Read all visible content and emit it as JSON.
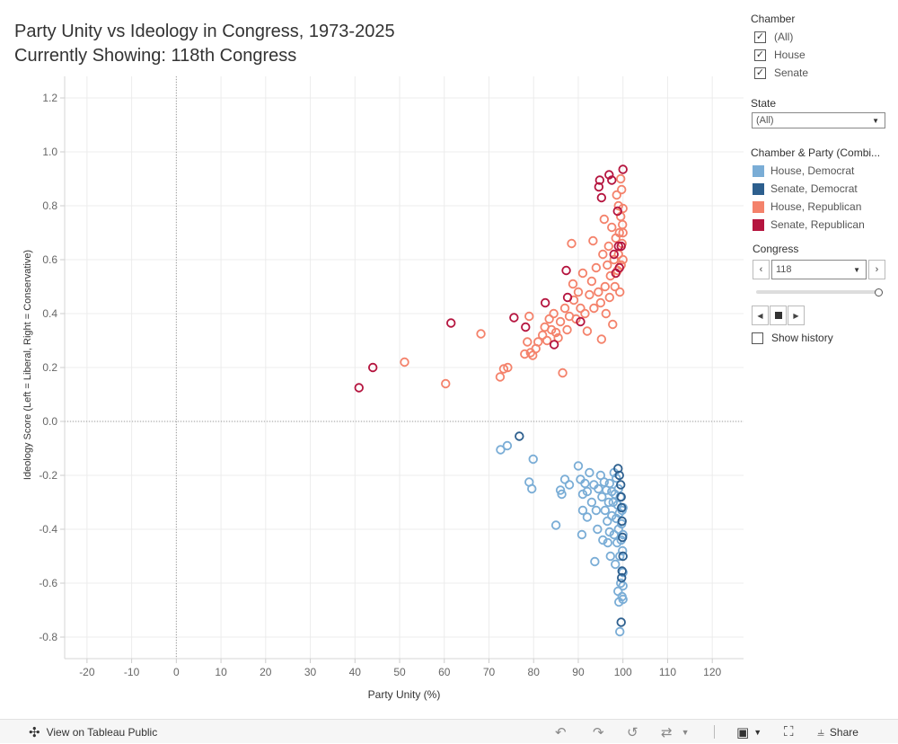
{
  "title": {
    "line1": "Party Unity vs Ideology in Congress, 1973-2025",
    "line2": "Currently Showing: 118th Congress"
  },
  "chart_data": {
    "type": "scatter",
    "xlabel": "Party Unity (%)",
    "ylabel": "Ideology Score (Left = Liberal, Right = Conservative)",
    "xlim": [
      -25,
      127
    ],
    "ylim": [
      -0.88,
      1.28
    ],
    "xticks": [
      -20,
      -10,
      0,
      10,
      20,
      30,
      40,
      50,
      60,
      70,
      80,
      90,
      100,
      110,
      120
    ],
    "yticks": [
      -0.8,
      -0.6,
      -0.4,
      -0.2,
      0.0,
      0.2,
      0.4,
      0.6,
      0.8,
      1.0,
      1.2
    ],
    "grid": true,
    "reference_lines": {
      "x": 0,
      "y": 0
    },
    "marker": "hollow-circle",
    "series": [
      {
        "name": "House, Democrat",
        "color": "#7aadd6",
        "points": [
          [
            72.6,
            -0.105
          ],
          [
            74.1,
            -0.09
          ],
          [
            79.0,
            -0.225
          ],
          [
            79.6,
            -0.25
          ],
          [
            79.9,
            -0.14
          ],
          [
            85.0,
            -0.385
          ],
          [
            86.0,
            -0.255
          ],
          [
            86.3,
            -0.27
          ],
          [
            87.0,
            -0.215
          ],
          [
            88.0,
            -0.235
          ],
          [
            90.0,
            -0.165
          ],
          [
            90.5,
            -0.215
          ],
          [
            90.8,
            -0.42
          ],
          [
            91.0,
            -0.27
          ],
          [
            91.0,
            -0.33
          ],
          [
            91.5,
            -0.23
          ],
          [
            92.0,
            -0.26
          ],
          [
            92.0,
            -0.355
          ],
          [
            92.5,
            -0.19
          ],
          [
            93.0,
            -0.3
          ],
          [
            93.5,
            -0.235
          ],
          [
            93.7,
            -0.52
          ],
          [
            94.0,
            -0.33
          ],
          [
            94.3,
            -0.4
          ],
          [
            94.5,
            -0.25
          ],
          [
            95.0,
            -0.2
          ],
          [
            95.3,
            -0.28
          ],
          [
            95.5,
            -0.44
          ],
          [
            95.8,
            -0.225
          ],
          [
            96.0,
            -0.33
          ],
          [
            96.3,
            -0.255
          ],
          [
            96.5,
            -0.37
          ],
          [
            96.6,
            -0.45
          ],
          [
            96.8,
            -0.3
          ],
          [
            97.0,
            -0.23
          ],
          [
            97.0,
            -0.41
          ],
          [
            97.2,
            -0.5
          ],
          [
            97.5,
            -0.26
          ],
          [
            97.5,
            -0.35
          ],
          [
            97.8,
            -0.3
          ],
          [
            98.0,
            -0.19
          ],
          [
            98.0,
            -0.42
          ],
          [
            98.2,
            -0.27
          ],
          [
            98.3,
            -0.53
          ],
          [
            98.5,
            -0.36
          ],
          [
            98.5,
            -0.21
          ],
          [
            98.7,
            -0.45
          ],
          [
            98.8,
            -0.31
          ],
          [
            98.9,
            -0.63
          ],
          [
            99.0,
            -0.25
          ],
          [
            99.0,
            -0.4
          ],
          [
            99.1,
            -0.67
          ],
          [
            99.2,
            -0.34
          ],
          [
            99.3,
            -0.5
          ],
          [
            99.3,
            -0.78
          ],
          [
            99.4,
            -0.28
          ],
          [
            99.5,
            -0.6
          ],
          [
            99.6,
            -0.44
          ],
          [
            99.7,
            -0.38
          ],
          [
            99.8,
            -0.65
          ],
          [
            99.8,
            -0.33
          ],
          [
            99.9,
            -0.48
          ],
          [
            100.0,
            -0.32
          ],
          [
            100.0,
            -0.42
          ],
          [
            100.0,
            -0.56
          ],
          [
            100.0,
            -0.61
          ],
          [
            100.0,
            -0.66
          ]
        ]
      },
      {
        "name": "Senate, Democrat",
        "color": "#2d5f8e",
        "points": [
          [
            76.8,
            -0.055
          ],
          [
            98.9,
            -0.175
          ],
          [
            99.2,
            -0.2
          ],
          [
            99.5,
            -0.235
          ],
          [
            99.6,
            -0.28
          ],
          [
            99.7,
            -0.32
          ],
          [
            99.8,
            -0.37
          ],
          [
            99.9,
            -0.43
          ],
          [
            100.0,
            -0.5
          ],
          [
            99.8,
            -0.555
          ],
          [
            99.7,
            -0.58
          ],
          [
            99.6,
            -0.745
          ]
        ]
      },
      {
        "name": "House, Republican",
        "color": "#f4826b",
        "points": [
          [
            51.1,
            0.22
          ],
          [
            60.3,
            0.14
          ],
          [
            68.2,
            0.325
          ],
          [
            72.5,
            0.165
          ],
          [
            73.3,
            0.195
          ],
          [
            74.2,
            0.2
          ],
          [
            78.0,
            0.25
          ],
          [
            78.6,
            0.295
          ],
          [
            79.0,
            0.39
          ],
          [
            79.3,
            0.255
          ],
          [
            79.8,
            0.245
          ],
          [
            80.5,
            0.27
          ],
          [
            81.0,
            0.295
          ],
          [
            82.0,
            0.32
          ],
          [
            82.5,
            0.35
          ],
          [
            83.0,
            0.3
          ],
          [
            83.5,
            0.38
          ],
          [
            84.0,
            0.34
          ],
          [
            84.5,
            0.4
          ],
          [
            85.0,
            0.33
          ],
          [
            85.5,
            0.31
          ],
          [
            86.0,
            0.37
          ],
          [
            86.5,
            0.18
          ],
          [
            87.0,
            0.42
          ],
          [
            87.5,
            0.34
          ],
          [
            88.0,
            0.39
          ],
          [
            88.5,
            0.66
          ],
          [
            88.8,
            0.51
          ],
          [
            89.0,
            0.45
          ],
          [
            89.5,
            0.38
          ],
          [
            90.0,
            0.48
          ],
          [
            90.5,
            0.42
          ],
          [
            91.0,
            0.55
          ],
          [
            91.5,
            0.4
          ],
          [
            92.0,
            0.335
          ],
          [
            92.5,
            0.47
          ],
          [
            93.0,
            0.52
          ],
          [
            93.3,
            0.67
          ],
          [
            93.5,
            0.42
          ],
          [
            94.0,
            0.57
          ],
          [
            94.5,
            0.48
          ],
          [
            95.0,
            0.44
          ],
          [
            95.2,
            0.305
          ],
          [
            95.5,
            0.62
          ],
          [
            95.8,
            0.75
          ],
          [
            96.0,
            0.5
          ],
          [
            96.2,
            0.4
          ],
          [
            96.5,
            0.58
          ],
          [
            96.8,
            0.65
          ],
          [
            97.0,
            0.46
          ],
          [
            97.2,
            0.54
          ],
          [
            97.5,
            0.72
          ],
          [
            97.7,
            0.36
          ],
          [
            98.0,
            0.6
          ],
          [
            98.2,
            0.5
          ],
          [
            98.4,
            0.68
          ],
          [
            98.6,
            0.84
          ],
          [
            98.8,
            0.56
          ],
          [
            99.0,
            0.62
          ],
          [
            99.0,
            0.8
          ],
          [
            99.2,
            0.7
          ],
          [
            99.3,
            0.48
          ],
          [
            99.5,
            0.76
          ],
          [
            99.6,
            0.58
          ],
          [
            99.7,
            0.86
          ],
          [
            99.8,
            0.66
          ],
          [
            99.9,
            0.73
          ],
          [
            100.0,
            0.6
          ],
          [
            100.0,
            0.7
          ],
          [
            100.0,
            0.79
          ],
          [
            99.5,
            0.9
          ]
        ]
      },
      {
        "name": "Senate, Republican",
        "color": "#b5153f",
        "points": [
          [
            40.9,
            0.125
          ],
          [
            44.0,
            0.2
          ],
          [
            61.5,
            0.365
          ],
          [
            75.6,
            0.385
          ],
          [
            78.2,
            0.35
          ],
          [
            82.6,
            0.44
          ],
          [
            84.6,
            0.285
          ],
          [
            87.3,
            0.56
          ],
          [
            87.6,
            0.46
          ],
          [
            90.5,
            0.37
          ],
          [
            94.6,
            0.87
          ],
          [
            94.8,
            0.895
          ],
          [
            95.2,
            0.83
          ],
          [
            96.9,
            0.915
          ],
          [
            97.5,
            0.895
          ],
          [
            98.0,
            0.62
          ],
          [
            98.4,
            0.55
          ],
          [
            98.8,
            0.78
          ],
          [
            99.0,
            0.65
          ],
          [
            99.2,
            0.57
          ],
          [
            99.6,
            0.65
          ],
          [
            100.0,
            0.935
          ]
        ]
      }
    ]
  },
  "sidebar": {
    "chamber_title": "Chamber",
    "chamber_options": [
      {
        "label": "(All)",
        "checked": "✓"
      },
      {
        "label": "House",
        "checked": "✓"
      },
      {
        "label": "Senate",
        "checked": "✓"
      }
    ],
    "state_title": "State",
    "state_value": "(All)",
    "legend_title": "Chamber & Party (Combi...",
    "legend_items": [
      {
        "label": "House, Democrat",
        "color": "#7aadd6"
      },
      {
        "label": "Senate, Democrat",
        "color": "#2d5f8e"
      },
      {
        "label": "House, Republican",
        "color": "#f4826b"
      },
      {
        "label": "Senate, Republican",
        "color": "#b5153f"
      }
    ],
    "congress_title": "Congress",
    "congress_value": "118",
    "congress_slider_fraction": 1.0,
    "show_history_label": "Show history",
    "show_history_checked": ""
  },
  "footer": {
    "view_label": "View on Tableau Public",
    "share_label": "Share"
  }
}
